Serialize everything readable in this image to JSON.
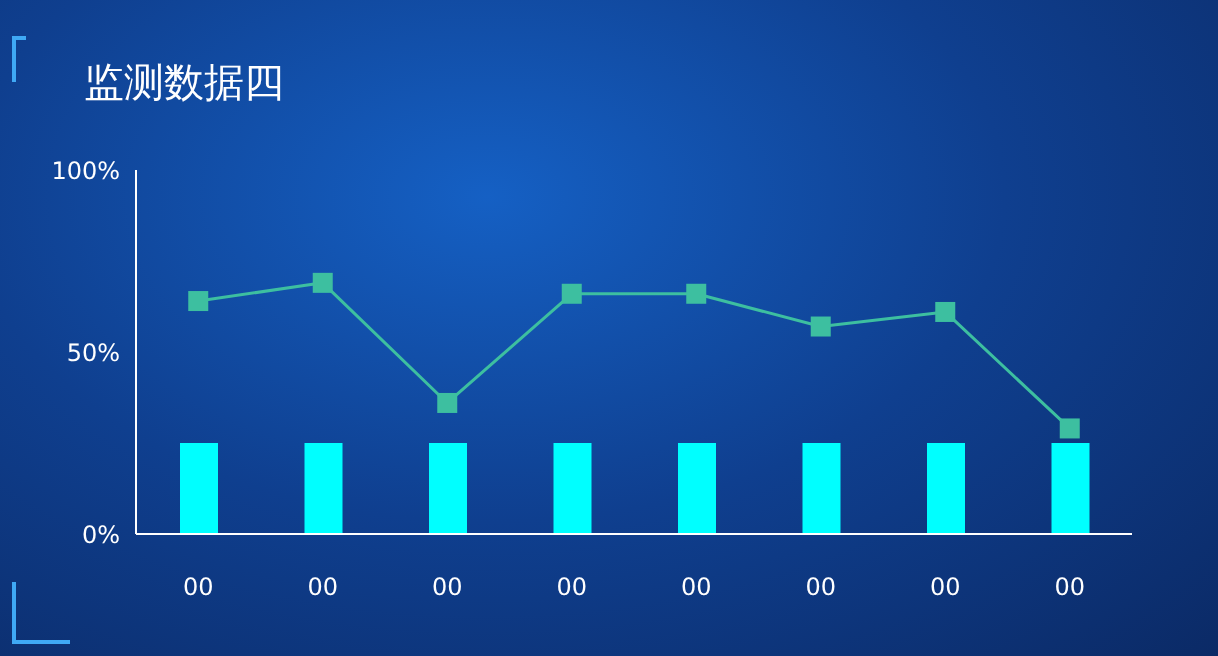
{
  "chart_data": {
    "type": "bar",
    "title": "监测数据四",
    "categories": [
      "00",
      "00",
      "00",
      "00",
      "00",
      "00",
      "00",
      "00"
    ],
    "series": [
      {
        "color": "#00ffff",
        "values": [
          25,
          25,
          25,
          25,
          25,
          25,
          25,
          25
        ]
      },
      {
        "type": "line",
        "color": "#3dbfa0",
        "marker": "square",
        "values": [
          64,
          69,
          36,
          66,
          66,
          57,
          61,
          29
        ]
      }
    ],
    "ylim": [
      0,
      100
    ],
    "yticks": [
      {
        "value": 0,
        "label": "0%"
      },
      {
        "value": 50,
        "label": "50%"
      },
      {
        "value": 100,
        "label": "100%"
      }
    ],
    "grid": false
  }
}
